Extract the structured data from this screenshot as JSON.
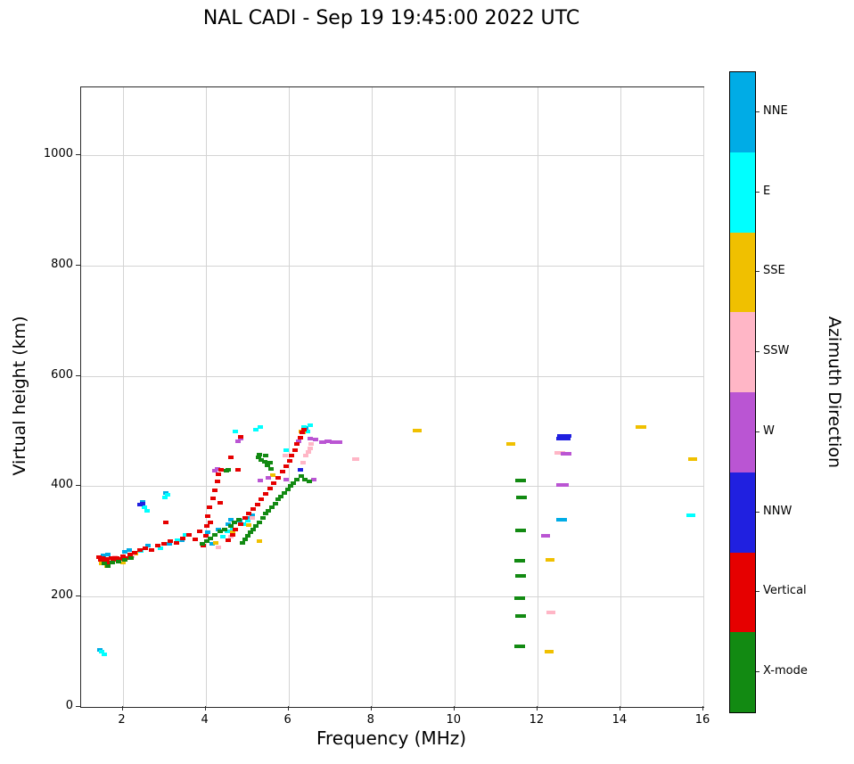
{
  "chart_data": {
    "type": "scatter",
    "title": "NAL CADI - Sep 19 19:45:00 2022 UTC",
    "xlabel": "Frequency (MHz)",
    "ylabel": "Virtual height (km)",
    "colorbar_title": "Azimuth Direction",
    "xlim": [
      1,
      16
    ],
    "ylim": [
      0,
      1123
    ],
    "xticks": [
      2,
      4,
      6,
      8,
      10,
      12,
      14,
      16
    ],
    "yticks": [
      0,
      200,
      400,
      600,
      800,
      1000
    ],
    "grid": true,
    "legend_position": "right-colorbar",
    "marker": "small horizontal dash",
    "series": [
      {
        "name": "NNE",
        "color": "#00ace6",
        "points": [
          [
            1.46,
            104
          ],
          [
            1.54,
            274
          ],
          [
            1.64,
            277
          ],
          [
            2.05,
            281
          ],
          [
            2.15,
            284
          ],
          [
            2.48,
            372
          ],
          [
            2.62,
            292
          ],
          [
            3.05,
            388
          ],
          [
            3.12,
            296
          ],
          [
            3.42,
            302
          ],
          [
            4.05,
            316
          ],
          [
            4.15,
            296
          ],
          [
            4.32,
            322
          ],
          [
            4.55,
            332
          ],
          [
            4.62,
            340
          ],
          [
            4.82,
            337
          ],
          [
            5.05,
            342
          ],
          [
            5.12,
            348
          ],
          [
            6.42,
            505
          ],
          [
            12.58,
            340,
            12
          ]
        ]
      },
      {
        "name": "E",
        "color": "#00ffff",
        "points": [
          [
            1.5,
            100
          ],
          [
            1.56,
            96
          ],
          [
            1.52,
            268
          ],
          [
            1.62,
            264
          ],
          [
            1.72,
            270
          ],
          [
            2.45,
            282
          ],
          [
            2.52,
            362
          ],
          [
            2.58,
            356
          ],
          [
            2.92,
            288
          ],
          [
            3.02,
            380
          ],
          [
            3.08,
            384
          ],
          [
            3.32,
            302
          ],
          [
            3.52,
            312
          ],
          [
            4.42,
            308
          ],
          [
            4.52,
            318
          ],
          [
            4.65,
            322
          ],
          [
            4.72,
            500
          ],
          [
            4.92,
            332
          ],
          [
            5.02,
            338
          ],
          [
            5.22,
            502
          ],
          [
            5.32,
            507
          ],
          [
            5.95,
            465
          ],
          [
            6.38,
            507
          ],
          [
            6.45,
            500
          ],
          [
            6.52,
            510
          ],
          [
            15.7,
            348,
            10
          ]
        ]
      },
      {
        "name": "SSE",
        "color": "#f0c000",
        "points": [
          [
            1.5,
            260
          ],
          [
            1.62,
            256
          ],
          [
            1.72,
            262
          ],
          [
            2.0,
            262
          ],
          [
            2.32,
            278
          ],
          [
            4.25,
            298
          ],
          [
            4.65,
            316
          ],
          [
            5.05,
            330
          ],
          [
            5.3,
            300
          ],
          [
            5.62,
            420
          ],
          [
            6.3,
            500
          ],
          [
            6.36,
            497
          ],
          [
            9.1,
            501,
            10
          ],
          [
            11.35,
            477,
            10
          ],
          [
            12.3,
            267,
            10
          ],
          [
            12.28,
            100,
            10
          ],
          [
            14.5,
            507,
            12
          ],
          [
            15.75,
            450,
            10
          ]
        ]
      },
      {
        "name": "SSW",
        "color": "#ffb6c6",
        "points": [
          [
            1.82,
            272
          ],
          [
            2.02,
            266
          ],
          [
            2.22,
            273
          ],
          [
            4.3,
            290
          ],
          [
            4.62,
            308
          ],
          [
            5.12,
            342
          ],
          [
            5.92,
            456
          ],
          [
            6.35,
            442
          ],
          [
            6.42,
            456
          ],
          [
            6.48,
            462
          ],
          [
            6.52,
            468
          ],
          [
            6.55,
            476
          ],
          [
            7.62,
            450,
            8
          ],
          [
            12.33,
            172,
            10
          ],
          [
            12.55,
            461,
            12
          ]
        ]
      },
      {
        "name": "W",
        "color": "#ba55d3",
        "points": [
          [
            4.22,
            428
          ],
          [
            4.28,
            431
          ],
          [
            4.78,
            482
          ],
          [
            4.85,
            486
          ],
          [
            5.32,
            410
          ],
          [
            5.52,
            415
          ],
          [
            5.95,
            412
          ],
          [
            6.25,
            482
          ],
          [
            6.52,
            486
          ],
          [
            6.6,
            412
          ],
          [
            6.65,
            484
          ],
          [
            6.82,
            480,
            8
          ],
          [
            6.95,
            481,
            8
          ],
          [
            7.08,
            480,
            8
          ],
          [
            7.2,
            480,
            8
          ],
          [
            12.2,
            310,
            10
          ],
          [
            12.68,
            459,
            12
          ],
          [
            12.6,
            403,
            14
          ]
        ]
      },
      {
        "name": "NNW",
        "color": "#2020e0",
        "points": [
          [
            2.42,
            366
          ],
          [
            2.48,
            369
          ],
          [
            6.28,
            430
          ],
          [
            12.62,
            486,
            16
          ],
          [
            12.64,
            491,
            16
          ]
        ]
      },
      {
        "name": "Vertical",
        "color": "#e60000",
        "points": [
          [
            1.42,
            272
          ],
          [
            1.48,
            266
          ],
          [
            1.52,
            270
          ],
          [
            1.58,
            264
          ],
          [
            1.62,
            268
          ],
          [
            1.68,
            262
          ],
          [
            1.72,
            270
          ],
          [
            1.78,
            266
          ],
          [
            1.85,
            270
          ],
          [
            1.95,
            268
          ],
          [
            2.02,
            273
          ],
          [
            2.1,
            270
          ],
          [
            2.18,
            276
          ],
          [
            2.3,
            280
          ],
          [
            2.42,
            284
          ],
          [
            2.55,
            288
          ],
          [
            2.7,
            284
          ],
          [
            2.85,
            292
          ],
          [
            3.0,
            296
          ],
          [
            3.05,
            334
          ],
          [
            3.15,
            300
          ],
          [
            3.3,
            298
          ],
          [
            3.45,
            306
          ],
          [
            3.6,
            312
          ],
          [
            3.75,
            304
          ],
          [
            3.85,
            318
          ],
          [
            3.95,
            292
          ],
          [
            4.0,
            310
          ],
          [
            4.02,
            328
          ],
          [
            4.05,
            346
          ],
          [
            4.1,
            362
          ],
          [
            4.12,
            335
          ],
          [
            4.18,
            378
          ],
          [
            4.22,
            392
          ],
          [
            4.28,
            408
          ],
          [
            4.32,
            422
          ],
          [
            4.35,
            370
          ],
          [
            4.38,
            430
          ],
          [
            4.55,
            302
          ],
          [
            4.6,
            452
          ],
          [
            4.65,
            312
          ],
          [
            4.72,
            322
          ],
          [
            4.78,
            430
          ],
          [
            4.85,
            332
          ],
          [
            4.85,
            490
          ],
          [
            4.95,
            342
          ],
          [
            5.05,
            350
          ],
          [
            5.15,
            358
          ],
          [
            5.25,
            366
          ],
          [
            5.35,
            376
          ],
          [
            5.45,
            386
          ],
          [
            5.55,
            396
          ],
          [
            5.65,
            406
          ],
          [
            5.75,
            416
          ],
          [
            5.85,
            426
          ],
          [
            5.95,
            436
          ],
          [
            6.02,
            446
          ],
          [
            6.08,
            456
          ],
          [
            6.15,
            466
          ],
          [
            6.2,
            476
          ],
          [
            6.28,
            488
          ],
          [
            6.32,
            497
          ],
          [
            6.38,
            503
          ]
        ]
      },
      {
        "name": "X-mode",
        "color": "#128a12",
        "points": [
          [
            1.55,
            260
          ],
          [
            1.65,
            256
          ],
          [
            1.75,
            262
          ],
          [
            1.9,
            264
          ],
          [
            2.05,
            266
          ],
          [
            2.2,
            270
          ],
          [
            3.92,
            296
          ],
          [
            4.02,
            300
          ],
          [
            4.12,
            306
          ],
          [
            4.22,
            312
          ],
          [
            4.35,
            318
          ],
          [
            4.45,
            322
          ],
          [
            4.5,
            428
          ],
          [
            4.55,
            430
          ],
          [
            4.6,
            328
          ],
          [
            4.7,
            334
          ],
          [
            4.8,
            340
          ],
          [
            4.88,
            298
          ],
          [
            4.95,
            304
          ],
          [
            5.02,
            310
          ],
          [
            5.08,
            316
          ],
          [
            5.15,
            322
          ],
          [
            5.22,
            328
          ],
          [
            5.28,
            452
          ],
          [
            5.3,
            334
          ],
          [
            5.3,
            458
          ],
          [
            5.35,
            448
          ],
          [
            5.38,
            342
          ],
          [
            5.42,
            444
          ],
          [
            5.45,
            350
          ],
          [
            5.45,
            455
          ],
          [
            5.5,
            438
          ],
          [
            5.52,
            356
          ],
          [
            5.55,
            442
          ],
          [
            5.58,
            432
          ],
          [
            5.6,
            362
          ],
          [
            5.68,
            368
          ],
          [
            5.75,
            376
          ],
          [
            5.82,
            382
          ],
          [
            5.9,
            388
          ],
          [
            5.98,
            394
          ],
          [
            6.05,
            400
          ],
          [
            6.12,
            406
          ],
          [
            6.2,
            412
          ],
          [
            6.3,
            418
          ],
          [
            6.4,
            412
          ],
          [
            6.5,
            408
          ],
          [
            11.6,
            410,
            12
          ],
          [
            11.62,
            380,
            12
          ],
          [
            11.6,
            320,
            12
          ],
          [
            11.58,
            265,
            12
          ],
          [
            11.6,
            237,
            12
          ],
          [
            11.58,
            197,
            12
          ],
          [
            11.6,
            165,
            12
          ],
          [
            11.58,
            110,
            12
          ]
        ]
      }
    ]
  }
}
